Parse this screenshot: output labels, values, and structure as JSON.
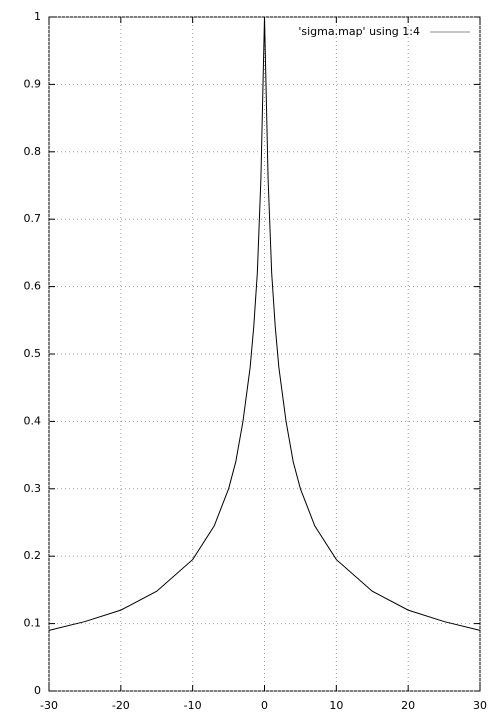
{
  "chart_data": {
    "type": "line",
    "x": [
      -30,
      -25,
      -20,
      -15,
      -10,
      -7,
      -5,
      -4,
      -3,
      -2,
      -1.5,
      -1,
      -0.5,
      0,
      0.5,
      1,
      1.5,
      2,
      3,
      4,
      5,
      7,
      10,
      15,
      20,
      25,
      30
    ],
    "series": [
      {
        "name": "'sigma.map' using 1:4",
        "color": "#000000",
        "values": [
          0.09,
          0.103,
          0.12,
          0.148,
          0.195,
          0.245,
          0.3,
          0.34,
          0.4,
          0.48,
          0.54,
          0.62,
          0.76,
          1,
          0.76,
          0.62,
          0.54,
          0.48,
          0.4,
          0.34,
          0.3,
          0.245,
          0.195,
          0.148,
          0.12,
          0.103,
          0.09
        ]
      }
    ],
    "xlim": [
      -30,
      30
    ],
    "ylim": [
      0,
      1
    ],
    "xticks": [
      -30,
      -20,
      -10,
      0,
      10,
      20,
      30
    ],
    "yticks": [
      0,
      0.1,
      0.2,
      0.3,
      0.4,
      0.5,
      0.6,
      0.7,
      0.8,
      0.9,
      1
    ],
    "grid": true,
    "legend": "top-right"
  }
}
